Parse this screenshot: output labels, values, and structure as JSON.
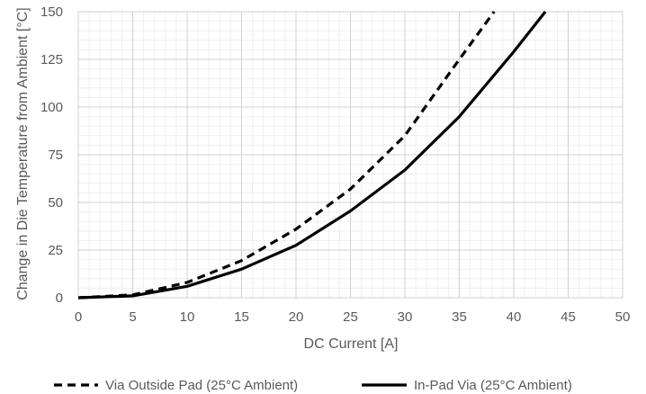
{
  "chart_data": {
    "type": "line",
    "xlabel": "DC Current [A]",
    "ylabel": "Change in Die Temperature from Ambient [°C]",
    "xlim": [
      0,
      50
    ],
    "ylim": [
      0,
      150
    ],
    "x_ticks": [
      0,
      5,
      10,
      15,
      20,
      25,
      30,
      35,
      40,
      45,
      50
    ],
    "y_ticks": [
      0,
      25,
      50,
      75,
      100,
      125,
      150
    ],
    "grid": true,
    "minor_grid": true,
    "legend_position": "bottom",
    "series": [
      {
        "name": "Via Outside Pad (25°C Ambient)",
        "style": "dashed",
        "color": "#000000",
        "x": [
          0,
          5,
          10,
          15,
          20,
          25,
          30,
          35,
          38.2
        ],
        "y": [
          0,
          1.5,
          8,
          19.5,
          36,
          57,
          85,
          125,
          150
        ]
      },
      {
        "name": "In-Pad Via (25°C Ambient)",
        "style": "solid",
        "color": "#000000",
        "x": [
          0,
          5,
          10,
          15,
          20,
          25,
          30,
          35,
          40,
          42.9
        ],
        "y": [
          0,
          1,
          6,
          15,
          27.5,
          45.5,
          67,
          95,
          129,
          150
        ]
      }
    ]
  }
}
